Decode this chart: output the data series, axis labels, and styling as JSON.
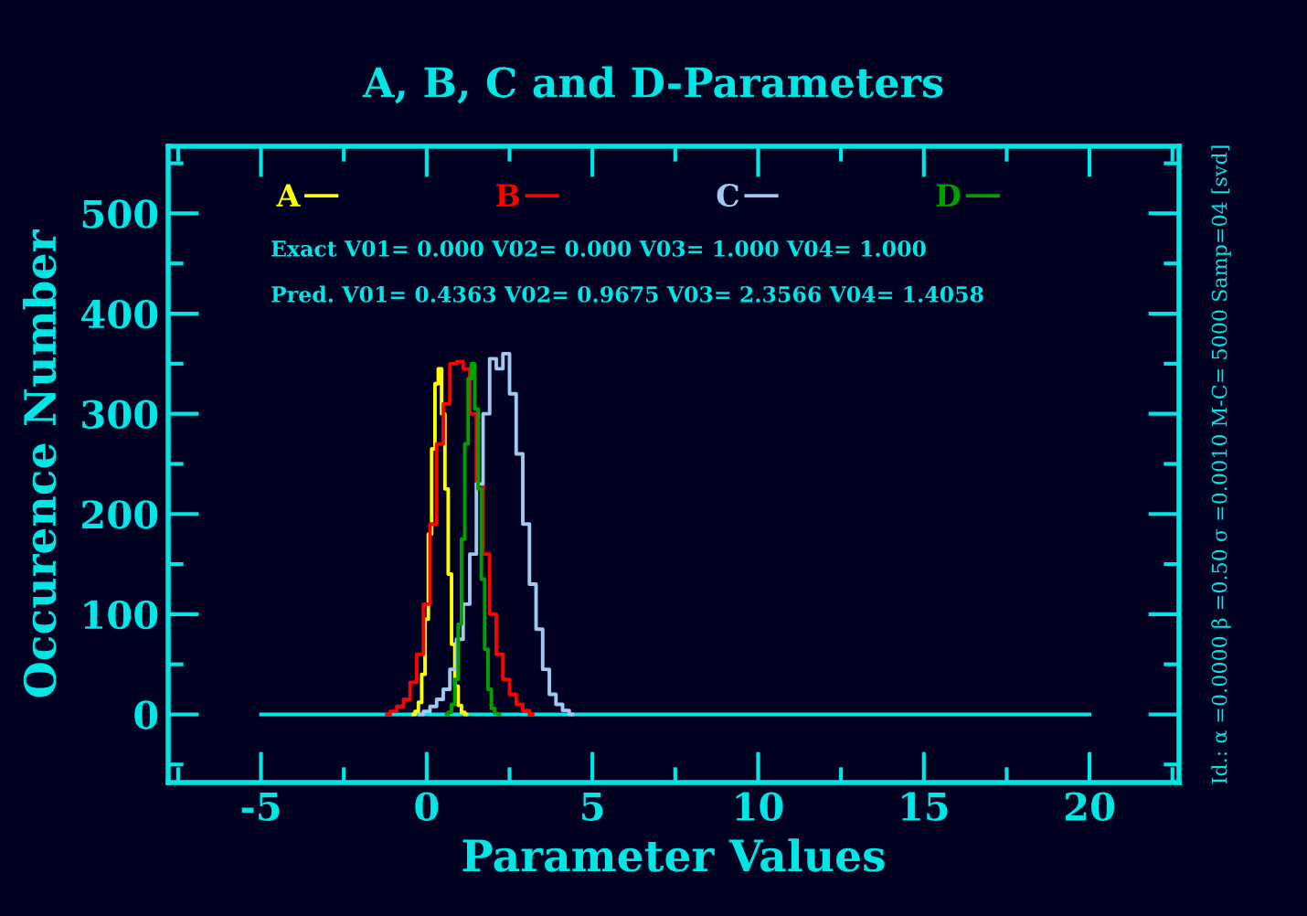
{
  "chart_data": {
    "type": "step",
    "title": "A, B, C and D-Parameters",
    "xlabel": "Parameter Values",
    "ylabel": "Occurence Number",
    "xlim": [
      -7.8,
      22.7
    ],
    "ylim": [
      -68,
      567
    ],
    "xticks": [
      -5,
      0,
      5,
      10,
      15,
      20
    ],
    "yticks": [
      0,
      100,
      200,
      300,
      400,
      500
    ],
    "grid": false,
    "legend": "top left",
    "annotations": [
      "Exact V01= 0.000 V02= 0.000 V03= 1.000 V04= 1.000",
      "Pred. V01= 0.4363 V02= 0.9675 V03= 2.3566 V04= 1.4058",
      "Id.: α =0.0000 β =0.50 σ =0.0010 M-C= 5000 Samp=04 [svd]"
    ],
    "series": [
      {
        "type": "line",
        "color": "#00e5e5",
        "x": [
          -5,
          20
        ],
        "values": [
          0,
          0
        ]
      },
      {
        "name": "A",
        "color": "#ffff00",
        "x": [
          -0.4,
          -0.3,
          -0.2,
          -0.1,
          0.0,
          0.1,
          0.2,
          0.3,
          0.4,
          0.5,
          0.6,
          0.7,
          0.8,
          0.9,
          1.0,
          1.1,
          1.2
        ],
        "values": [
          0,
          3,
          12,
          40,
          95,
          180,
          265,
          330,
          345,
          300,
          225,
          140,
          70,
          28,
          9,
          2,
          0
        ]
      },
      {
        "name": "B",
        "color": "#ff0000",
        "x": [
          -1.2,
          -1.0,
          -0.8,
          -0.6,
          -0.4,
          -0.2,
          0.0,
          0.2,
          0.4,
          0.6,
          0.8,
          1.0,
          1.2,
          1.4,
          1.6,
          1.8,
          2.0,
          2.2,
          2.4,
          2.6,
          2.8,
          3.0,
          3.2
        ],
        "values": [
          0,
          3,
          8,
          15,
          32,
          60,
          110,
          190,
          270,
          310,
          350,
          352,
          345,
          300,
          230,
          160,
          100,
          60,
          35,
          20,
          10,
          4,
          0
        ]
      },
      {
        "name": "C",
        "color": "#a0c8f0",
        "x": [
          -0.2,
          0.0,
          0.2,
          0.4,
          0.6,
          0.8,
          1.0,
          1.2,
          1.4,
          1.6,
          1.8,
          2.0,
          2.2,
          2.4,
          2.6,
          2.8,
          3.0,
          3.2,
          3.4,
          3.6,
          3.8,
          4.0,
          4.2,
          4.4
        ],
        "values": [
          0,
          3,
          8,
          15,
          25,
          45,
          75,
          110,
          160,
          230,
          300,
          355,
          345,
          360,
          320,
          260,
          190,
          130,
          85,
          45,
          20,
          10,
          4,
          0
        ]
      },
      {
        "name": "D",
        "color": "#00a000",
        "x": [
          0.6,
          0.7,
          0.8,
          0.9,
          1.0,
          1.1,
          1.2,
          1.3,
          1.4,
          1.5,
          1.6,
          1.7,
          1.8,
          1.9,
          2.0,
          2.1,
          2.2
        ],
        "values": [
          0,
          2,
          10,
          35,
          90,
          175,
          270,
          335,
          350,
          305,
          225,
          135,
          65,
          25,
          6,
          1,
          0
        ]
      }
    ]
  }
}
